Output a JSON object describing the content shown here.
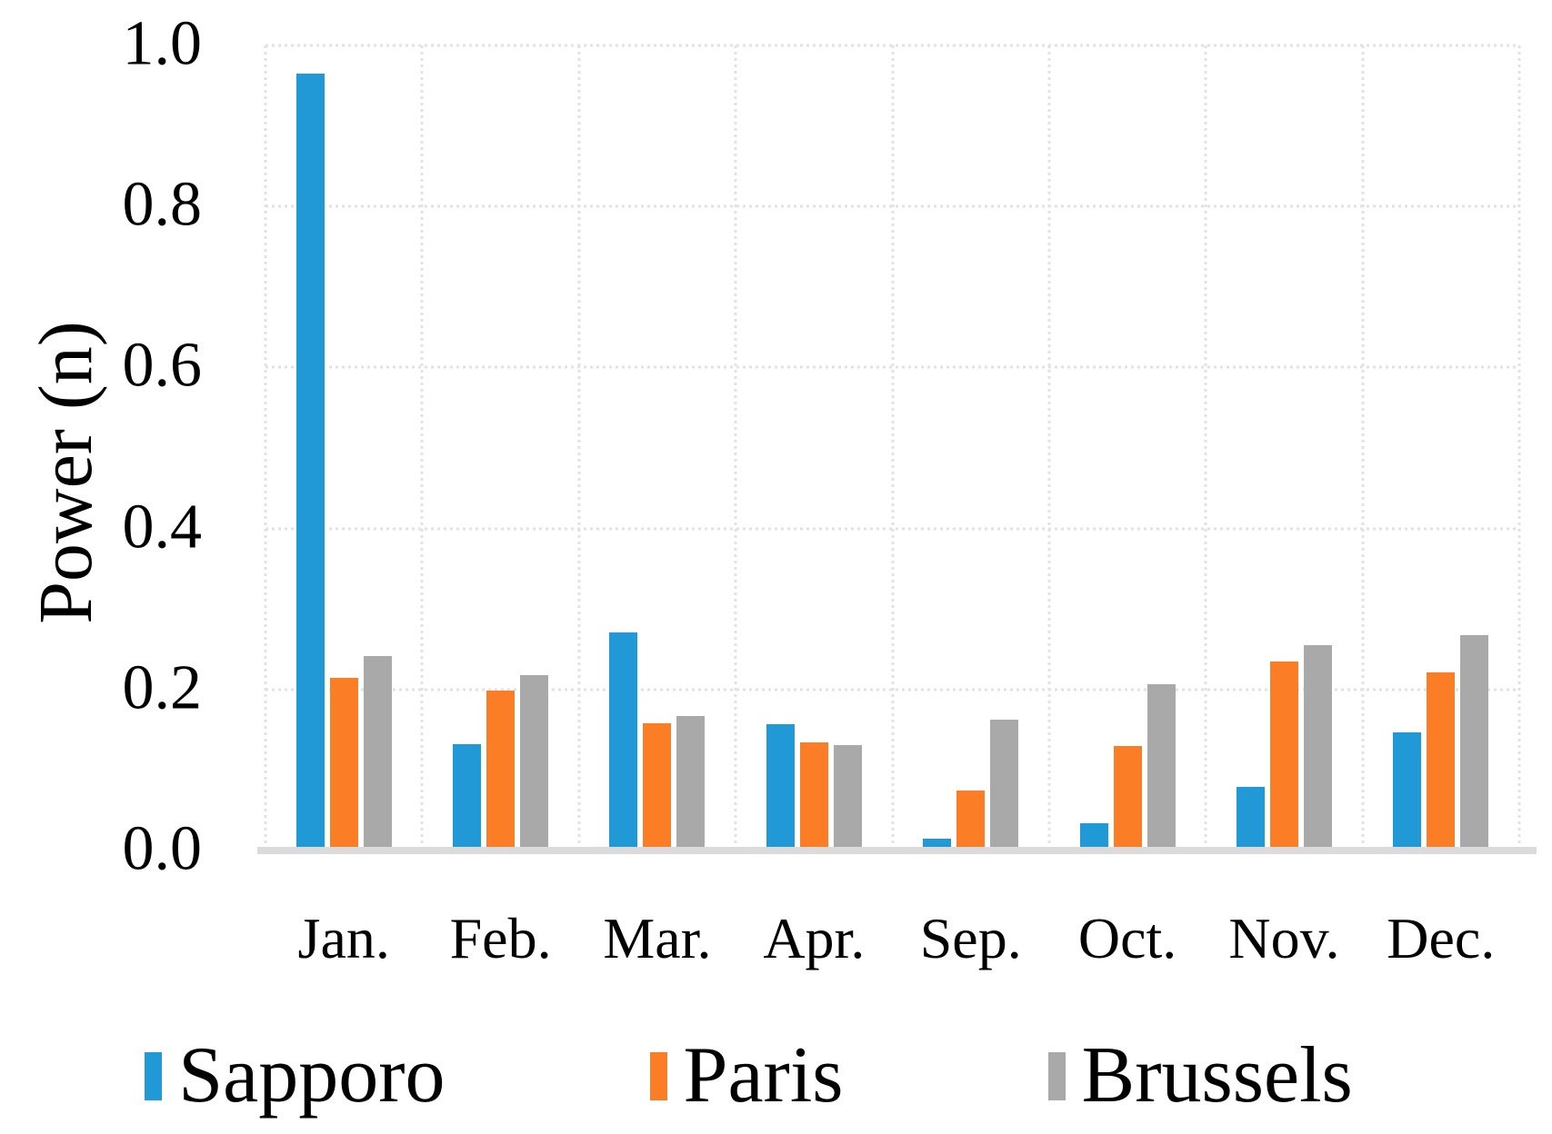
{
  "chart_data": {
    "type": "bar",
    "title": "",
    "ylabel": "Power (n)",
    "xlabel": "",
    "ylim": [
      0.0,
      1.0
    ],
    "ytick_step": 0.2,
    "yticks": [
      "1.0",
      "0.8",
      "0.6",
      "0.4",
      "0.2",
      "0.0"
    ],
    "grid": true,
    "gridline_style": "dotted",
    "legend_position": "bottom",
    "categories": [
      "Jan.",
      "Feb.",
      "Mar.",
      "Apr.",
      "Sep.",
      "Oct.",
      "Nov.",
      "Dec."
    ],
    "series": [
      {
        "name": "Sapporo",
        "color": "#2199D6",
        "values": [
          0.965,
          0.132,
          0.271,
          0.157,
          0.015,
          0.034,
          0.079,
          0.147
        ]
      },
      {
        "name": "Paris",
        "color": "#FB7D26",
        "values": [
          0.215,
          0.199,
          0.158,
          0.134,
          0.074,
          0.13,
          0.235,
          0.221
        ]
      },
      {
        "name": "Brussels",
        "color": "#A9A9A9",
        "values": [
          0.242,
          0.218,
          0.167,
          0.131,
          0.162,
          0.206,
          0.255,
          0.267
        ]
      }
    ]
  },
  "colors": {
    "gridline": "#E2E2E2",
    "axis_line": "#DBDBDB",
    "text": "#000000",
    "background": "#FFFFFF"
  }
}
